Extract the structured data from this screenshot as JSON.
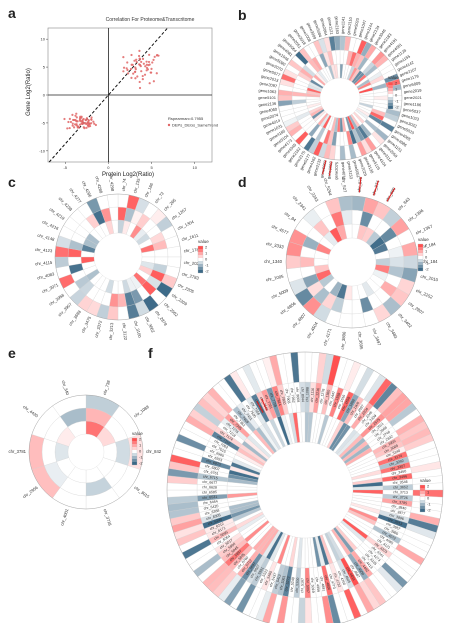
{
  "panel_letters": [
    "a",
    "b",
    "c",
    "d",
    "e",
    "f"
  ],
  "chart_data": [
    {
      "panel": "a",
      "type": "scatter",
      "title": "Correlation For Proteome&Transcritome",
      "xlabel": "Protein Log2(Ratio)",
      "ylabel": "Gene Log2(Ratio)",
      "xticks": [
        "-5",
        "0",
        "5",
        "10"
      ],
      "yticks": [
        "-10",
        "-5",
        "0",
        "5",
        "10"
      ],
      "xlim": [
        -7,
        12
      ],
      "ylim": [
        -12,
        12
      ],
      "annotation": "Rspearman=0.7955",
      "legend": "DEPs_DEGs_SameTrend",
      "legend_color": "#e06666",
      "trend_line": {
        "slope": 1.75,
        "intercept": 0
      },
      "clusters": [
        {
          "cx": 4.0,
          "cy": 5.0,
          "sx": 2.0,
          "sy": 2.6,
          "n": 60
        },
        {
          "cx": -3.2,
          "cy": -5.0,
          "sx": 1.5,
          "sy": 1.2,
          "n": 70
        }
      ]
    },
    {
      "panel": "b",
      "type": "heatmap",
      "layout": "circular",
      "rings": 3,
      "legend_title": "value",
      "legend_ticks": [
        "2",
        "1",
        "0",
        "-1",
        "-2"
      ],
      "labels": [
        "gene1141",
        "gene2110",
        "gene5020",
        "gene1047",
        "gene1144",
        "gene2134",
        "gene3046",
        "gene2183",
        "gene4191",
        "gene4081",
        "gene1128",
        "gene1155",
        "gene4142",
        "gene2107",
        "gene1179",
        "gene5009",
        "gene2019",
        "gene2021",
        "gene1186",
        "gene5037",
        "gene1023",
        "gene3032",
        "gene5020",
        "gene4065",
        "gene4086",
        "gene1151",
        "gene2059",
        "gene3114",
        "gene4104",
        "gene5119",
        "gene3130",
        "gene2029",
        "gene5051",
        "gene3153",
        "gene4071",
        "gene2075",
        "gene1002",
        "gene5003",
        "gene2132",
        "gene4162",
        "gene5177",
        "gene2175",
        "gene2162",
        "gene1045",
        "gene4173",
        "gene3104",
        "gene4185",
        "gene1031",
        "gene4014",
        "gene2074",
        "gene4060",
        "gene2136",
        "gene5101",
        "gene1063",
        "gene2097",
        "gene2013",
        "gene5077",
        "gene2070",
        "gene5080",
        "gene1046",
        "gene4081",
        "gene5064",
        "gene2051",
        "gene3018",
        "gene1008",
        "gene3009",
        "gene5084",
        "gene2064",
        "gene1121",
        "gene2183"
      ]
    },
    {
      "panel": "c",
      "type": "heatmap",
      "layout": "circular",
      "rings": 3,
      "legend_title": "value",
      "legend_ticks": [
        "2",
        "1",
        "0",
        "-1",
        "-2"
      ],
      "labels": [
        "chr_74",
        "chr_135",
        "chr_186",
        "chr_72",
        "chr_265",
        "chr_1267",
        "chr_1304",
        "chr_1611",
        "chr_1788",
        "chr_2026",
        "chr_2783",
        "chr_2205",
        "chr_2209",
        "chr_2562",
        "chr_2878",
        "chr_3062",
        "chr_3100",
        "chr_3122",
        "chr_3213",
        "chr_3372",
        "chr_3475",
        "chr_3688",
        "chr_3907",
        "chr_3958",
        "chr_3971",
        "chr_4083",
        "chr_4115",
        "chr_4123",
        "chr_4148",
        "chr_4216",
        "chr_4219",
        "chr_4238",
        "chr_4277",
        "chr_4286",
        "chr_4288",
        "chr_4298"
      ]
    },
    {
      "panel": "d",
      "type": "heatmap",
      "layout": "circular",
      "rings": 3,
      "legend_title": "value",
      "legend_ticks": [
        "2",
        "1",
        "0",
        "-1",
        "-2"
      ],
      "labels": [
        "chr_876",
        "chr_874",
        "chr_880",
        "chr_843",
        "chr_1396",
        "chr_1357",
        "chr_184",
        "chr_184",
        "chr_2010",
        "chr_2252",
        "chr_2807",
        "chr_3402",
        "chr_3483",
        "chr_3497",
        "chr_3695",
        "chr_3806",
        "chr_4171",
        "chr_4504",
        "chr_4807",
        "chr_4856",
        "chr_5009",
        "chr_1005",
        "chr_1340",
        "chr_3333",
        "chr_4577",
        "chr_84",
        "chr_2341",
        "chr_2243",
        "chr_5254",
        "chr_527"
      ]
    },
    {
      "panel": "e",
      "type": "heatmap",
      "layout": "circular",
      "rings": 3,
      "legend_title": "value",
      "legend_ticks": [
        "2",
        "1",
        "0",
        "-1",
        "-2"
      ],
      "labels": [
        "chr_738",
        "chr_1088",
        "chr_842",
        "chr_3015",
        "chr_3718",
        "chr_4001",
        "chr_2956",
        "chr_3781",
        "chr_4420",
        "chr_340"
      ]
    },
    {
      "panel": "f",
      "type": "heatmap",
      "layout": "circular",
      "rings": 3,
      "legend_title": "value",
      "legend_ticks": [
        "2",
        "1",
        "0",
        "-1",
        "-2"
      ],
      "labels": [
        "chr_1088",
        "chr_1116",
        "chr_1216",
        "chr_1276",
        "chr_1380",
        "chr_1447",
        "chr_1558",
        "chr_1616",
        "chr_1658",
        "chr_1868",
        "chr_1908",
        "chr_2097",
        "chr_2204",
        "chr_2245",
        "chr_2409",
        "chr_2575",
        "chr_2621",
        "chr_2668",
        "chr_2746",
        "chr_2832",
        "chr_2956",
        "chr_3008",
        "chr_3140",
        "chr_3174",
        "chr_3292",
        "chr_3307",
        "chr_3460",
        "chr_3496",
        "chr_3546",
        "chr_3652",
        "chr_3713",
        "chr_3726",
        "chr_3785",
        "chr_3840",
        "chr_3877",
        "chr_3896",
        "chr_3913",
        "chr_3957",
        "chr_3986",
        "chr_4072",
        "chr_4085",
        "chr_4121",
        "chr_4203",
        "chr_4241",
        "chr_4273",
        "chr_4326",
        "chr_4413",
        "chr_4462",
        "chr_4500",
        "chr_4587",
        "chr_4631",
        "chr_4645",
        "chr_4700",
        "chr_4732",
        "chr_4773",
        "chr_4806",
        "chr_4891",
        "chr_4956",
        "chr_5019",
        "chr_5097",
        "chr_5167",
        "chr_5200",
        "chr_5248",
        "chr_5272",
        "chr_5361",
        "chr_5412",
        "chr_5437",
        "chr_5490",
        "chr_5522",
        "chr_5561",
        "chr_5627",
        "chr_5697",
        "chr_5712",
        "chr_5760",
        "chr_5805",
        "chr_5897",
        "chr_5945",
        "chr_5990",
        "chr_6017",
        "chr_6064",
        "chr_6095",
        "chr_6171",
        "chr_6212",
        "chr_6240",
        "chr_6305",
        "chr_6388",
        "chr_6420",
        "chr_6464",
        "chr_6531",
        "chr_6585",
        "chr_6628",
        "chr_6677",
        "chr_6715",
        "chr_6761",
        "chr_6802",
        "chr_6870",
        "chr_6923",
        "chr_6980",
        "chr_7015",
        "chr_7062",
        "chr_7110",
        "chr_7174",
        "chr_7218",
        "chr_7276",
        "chr_7305",
        "chr_7362",
        "chr_7409",
        "chr_7451",
        "chr_7500",
        "chr_7556",
        "chr_7609",
        "chr_7643",
        "chr_7701",
        "chr_7756",
        "chr_7814",
        "chr_7860",
        "chr_7903",
        "chr_7952",
        "chr_8008",
        "chr_8044"
      ]
    }
  ]
}
